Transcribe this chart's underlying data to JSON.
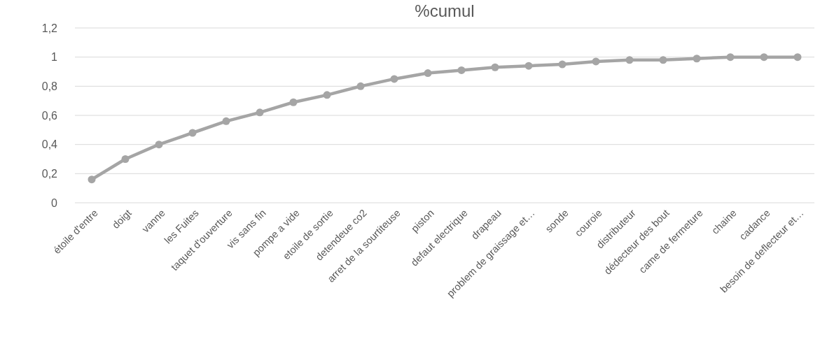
{
  "chart_data": {
    "type": "line",
    "title": "%cumul",
    "categories": [
      "étoile d'entre",
      "doigt",
      "vanne",
      "les Fuites",
      "taquet d'ouverture",
      "vis sans fin",
      "pompe a vide",
      "etoile de sortie",
      "detendeue co2",
      "arret de la sourtiteuse",
      "piston",
      "defaut electrique",
      "drapeau",
      "problem de graissage et…",
      "sonde",
      "couroie",
      "distributeur",
      "dédecteur des bout",
      "came de fermeture",
      "chaine",
      "cadance",
      "besoin de deflecteur et…"
    ],
    "series": [
      {
        "color": "#a5a5a5",
        "values": [
          0.16,
          0.3,
          0.4,
          0.48,
          0.56,
          0.62,
          0.69,
          0.74,
          0.8,
          0.85,
          0.89,
          0.91,
          0.93,
          0.94,
          0.95,
          0.97,
          0.98,
          0.98,
          0.99,
          1,
          1,
          1
        ]
      }
    ],
    "ylim": [
      0,
      1.2
    ],
    "yticks": [
      {
        "value": 0,
        "label": "0"
      },
      {
        "value": 0.2,
        "label": "0,2"
      },
      {
        "value": 0.4,
        "label": "0,4"
      },
      {
        "value": 0.6,
        "label": "0,6"
      },
      {
        "value": 0.8,
        "label": "0,8"
      },
      {
        "value": 1,
        "label": "1"
      },
      {
        "value": 1.2,
        "label": "1,2"
      }
    ],
    "grid": "y",
    "marker": "circle",
    "line_style": "solid"
  }
}
